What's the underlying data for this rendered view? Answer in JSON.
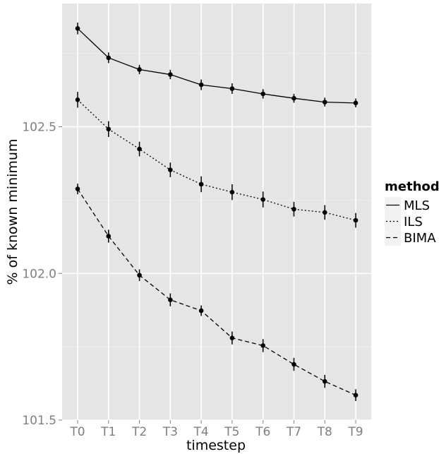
{
  "chart_data": {
    "type": "line",
    "title": "",
    "xlabel": "timestep",
    "ylabel": "% of known minimum",
    "categories": [
      "T0",
      "T1",
      "T2",
      "T3",
      "T4",
      "T5",
      "T6",
      "T7",
      "T8",
      "T9"
    ],
    "ylim": [
      101.5,
      102.92
    ],
    "yticks": [
      101.5,
      102.0,
      102.5
    ],
    "ytick_labels": [
      "101.5",
      "102.0",
      "102.5"
    ],
    "grid": true,
    "legend": {
      "title": "method",
      "position": "right"
    },
    "series": [
      {
        "name": "MLS",
        "dash": "solid",
        "values": [
          102.835,
          102.735,
          102.695,
          102.678,
          102.643,
          102.63,
          102.612,
          102.597,
          102.584,
          102.581
        ],
        "err": [
          0.02,
          0.018,
          0.016,
          0.016,
          0.018,
          0.018,
          0.016,
          0.015,
          0.015,
          0.015
        ]
      },
      {
        "name": "ILS",
        "dash": "dotted",
        "values": [
          102.592,
          102.492,
          102.424,
          102.353,
          102.304,
          102.277,
          102.252,
          102.219,
          102.208,
          102.181
        ],
        "err": [
          0.027,
          0.027,
          0.025,
          0.025,
          0.027,
          0.027,
          0.027,
          0.025,
          0.025,
          0.025
        ]
      },
      {
        "name": "BIMA",
        "dash": "dashed",
        "values": [
          102.288,
          102.127,
          101.994,
          101.91,
          101.873,
          101.78,
          101.754,
          101.69,
          101.632,
          101.585
        ],
        "err": [
          0.018,
          0.022,
          0.02,
          0.022,
          0.018,
          0.022,
          0.022,
          0.022,
          0.022,
          0.02
        ]
      }
    ]
  }
}
